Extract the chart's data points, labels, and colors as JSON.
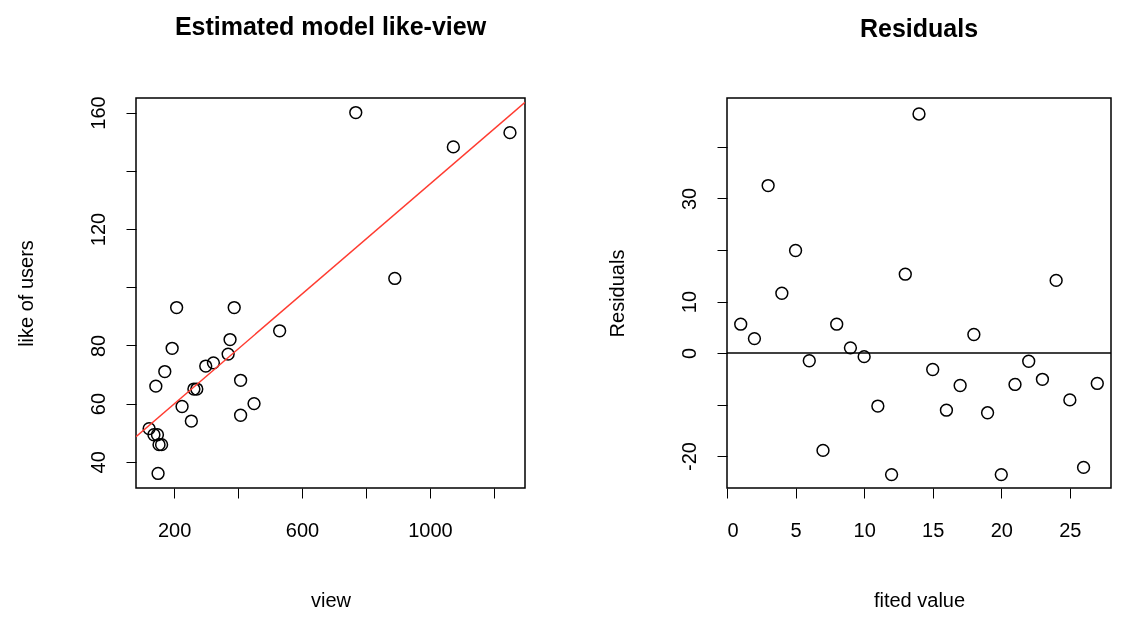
{
  "chart_data": [
    {
      "type": "scatter",
      "title": "Estimated model like-view",
      "xlabel": "view",
      "ylabel": "like of users",
      "xlim": [
        81,
        1297
      ],
      "xticks": [
        200,
        {
          "value": 400,
          "label": null
        },
        600,
        {
          "value": 800,
          "label": null
        },
        1000,
        {
          "value": 1200,
          "label": null
        }
      ],
      "ylim": [
        31,
        165
      ],
      "yticks": [
        40,
        60,
        80,
        {
          "value": 100,
          "label": null
        },
        120,
        {
          "value": 140,
          "label": null
        },
        160
      ],
      "grid": false,
      "legend": false,
      "series": [
        {
          "type": "scatter",
          "color": "#000000",
          "marker": "circle",
          "x": [
            768,
            1073,
            1250,
            890,
            208,
            388,
            530,
            375,
            194,
            369,
            299,
            323,
            171,
            143,
            408,
            262,
            271,
            450,
            225,
            408,
            254,
            122,
            137,
            148,
            153,
            161,
            150
          ],
          "values": [
            160,
            148.2,
            153.1,
            103,
            93,
            93,
            85,
            82,
            79,
            77,
            72.9,
            74,
            71,
            66,
            68,
            65,
            65,
            60,
            59,
            56,
            54,
            51.4,
            49.3,
            49.3,
            45.9,
            45.9,
            36
          ]
        },
        {
          "type": "line",
          "color": "#ff3b30",
          "marker": "none",
          "x": [
            81,
            1297
          ],
          "values": [
            48.6,
            163.5
          ]
        }
      ]
    },
    {
      "type": "scatter",
      "title": "Residuals",
      "xlabel": "fited value",
      "ylabel": "Residuals",
      "xlim": [
        0,
        28
      ],
      "xticks": [
        0,
        5,
        10,
        15,
        20,
        25
      ],
      "ylim": [
        -26.2,
        49.5
      ],
      "yticks": [
        -20,
        {
          "value": -10,
          "label": null
        },
        0,
        10,
        {
          "value": 20,
          "label": null
        },
        30,
        {
          "value": 40,
          "label": null
        }
      ],
      "grid": false,
      "legend": false,
      "ref_lines": [
        {
          "axis": "y",
          "value": 0,
          "color": "#000000"
        }
      ],
      "series": [
        {
          "type": "scatter",
          "color": "#000000",
          "marker": "circle",
          "x": [
            1,
            2,
            3,
            4,
            5,
            6,
            7,
            8,
            9,
            10,
            11,
            12,
            13,
            14,
            15,
            16,
            17,
            18,
            19,
            20,
            21,
            22,
            23,
            24,
            25,
            26,
            27
          ],
          "values": [
            5.6,
            2.8,
            32.5,
            11.6,
            19.9,
            -1.5,
            -18.9,
            5.6,
            1.0,
            -0.7,
            -10.3,
            -23.6,
            15.3,
            46.4,
            -3.2,
            -11.1,
            -6.3,
            3.6,
            -11.6,
            -23.6,
            -6.1,
            -1.6,
            -5.1,
            14.1,
            -9.1,
            -22.2,
            -5.9
          ]
        }
      ]
    }
  ]
}
